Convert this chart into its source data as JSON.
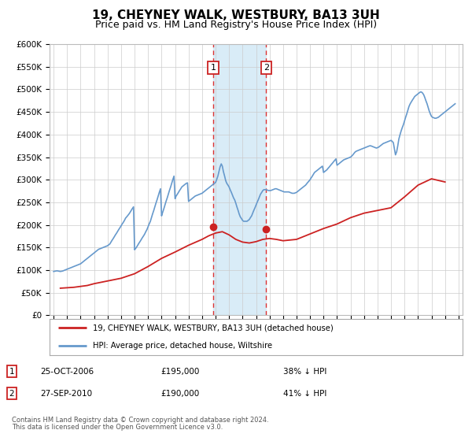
{
  "title": "19, CHEYNEY WALK, WESTBURY, BA13 3UH",
  "subtitle": "Price paid vs. HM Land Registry's House Price Index (HPI)",
  "title_fontsize": 11,
  "subtitle_fontsize": 9,
  "ylim": [
    0,
    600000
  ],
  "yticks": [
    0,
    50000,
    100000,
    150000,
    200000,
    250000,
    300000,
    350000,
    400000,
    450000,
    500000,
    550000,
    600000
  ],
  "ytick_labels": [
    "£0",
    "£50K",
    "£100K",
    "£150K",
    "£200K",
    "£250K",
    "£300K",
    "£350K",
    "£400K",
    "£450K",
    "£500K",
    "£550K",
    "£600K"
  ],
  "xlim_start": 1994.7,
  "xlim_end": 2025.3,
  "hpi_color": "#6699cc",
  "price_color": "#cc2222",
  "shade_color": "#d0e8f5",
  "sale1_x": 2006.82,
  "sale1_price": 195000,
  "sale1_pct": "38%",
  "sale1_date": "25-OCT-2006",
  "sale2_x": 2010.75,
  "sale2_price": 190000,
  "sale2_pct": "41%",
  "sale2_date": "27-SEP-2010",
  "legend_label_red": "19, CHEYNEY WALK, WESTBURY, BA13 3UH (detached house)",
  "legend_label_blue": "HPI: Average price, detached house, Wiltshire",
  "footer1": "Contains HM Land Registry data © Crown copyright and database right 2024.",
  "footer2": "This data is licensed under the Open Government Licence v3.0.",
  "hpi_x": [
    1995.0,
    1995.08,
    1995.17,
    1995.25,
    1995.33,
    1995.42,
    1995.5,
    1995.58,
    1995.67,
    1995.75,
    1995.83,
    1995.92,
    1996.0,
    1996.08,
    1996.17,
    1996.25,
    1996.33,
    1996.42,
    1996.5,
    1996.58,
    1996.67,
    1996.75,
    1996.83,
    1996.92,
    1997.0,
    1997.08,
    1997.17,
    1997.25,
    1997.33,
    1997.42,
    1997.5,
    1997.58,
    1997.67,
    1997.75,
    1997.83,
    1997.92,
    1998.0,
    1998.08,
    1998.17,
    1998.25,
    1998.33,
    1998.42,
    1998.5,
    1998.58,
    1998.67,
    1998.75,
    1998.83,
    1998.92,
    1999.0,
    1999.08,
    1999.17,
    1999.25,
    1999.33,
    1999.42,
    1999.5,
    1999.58,
    1999.67,
    1999.75,
    1999.83,
    1999.92,
    2000.0,
    2000.08,
    2000.17,
    2000.25,
    2000.33,
    2000.42,
    2000.5,
    2000.58,
    2000.67,
    2000.75,
    2000.83,
    2000.92,
    2001.0,
    2001.08,
    2001.17,
    2001.25,
    2001.33,
    2001.42,
    2001.5,
    2001.58,
    2001.67,
    2001.75,
    2001.83,
    2001.92,
    2002.0,
    2002.08,
    2002.17,
    2002.25,
    2002.33,
    2002.42,
    2002.5,
    2002.58,
    2002.67,
    2002.75,
    2002.83,
    2002.92,
    2003.0,
    2003.08,
    2003.17,
    2003.25,
    2003.33,
    2003.42,
    2003.5,
    2003.58,
    2003.67,
    2003.75,
    2003.83,
    2003.92,
    2004.0,
    2004.08,
    2004.17,
    2004.25,
    2004.33,
    2004.42,
    2004.5,
    2004.58,
    2004.67,
    2004.75,
    2004.83,
    2004.92,
    2005.0,
    2005.08,
    2005.17,
    2005.25,
    2005.33,
    2005.42,
    2005.5,
    2005.58,
    2005.67,
    2005.75,
    2005.83,
    2005.92,
    2006.0,
    2006.08,
    2006.17,
    2006.25,
    2006.33,
    2006.42,
    2006.5,
    2006.58,
    2006.67,
    2006.75,
    2006.83,
    2006.92,
    2007.0,
    2007.08,
    2007.17,
    2007.25,
    2007.33,
    2007.42,
    2007.5,
    2007.58,
    2007.67,
    2007.75,
    2007.83,
    2007.92,
    2008.0,
    2008.08,
    2008.17,
    2008.25,
    2008.33,
    2008.42,
    2008.5,
    2008.58,
    2008.67,
    2008.75,
    2008.83,
    2008.92,
    2009.0,
    2009.08,
    2009.17,
    2009.25,
    2009.33,
    2009.42,
    2009.5,
    2009.58,
    2009.67,
    2009.75,
    2009.83,
    2009.92,
    2010.0,
    2010.08,
    2010.17,
    2010.25,
    2010.33,
    2010.42,
    2010.5,
    2010.58,
    2010.67,
    2010.75,
    2010.83,
    2010.92,
    2011.0,
    2011.08,
    2011.17,
    2011.25,
    2011.33,
    2011.42,
    2011.5,
    2011.58,
    2011.67,
    2011.75,
    2011.83,
    2011.92,
    2012.0,
    2012.08,
    2012.17,
    2012.25,
    2012.33,
    2012.42,
    2012.5,
    2012.58,
    2012.67,
    2012.75,
    2012.83,
    2012.92,
    2013.0,
    2013.08,
    2013.17,
    2013.25,
    2013.33,
    2013.42,
    2013.5,
    2013.58,
    2013.67,
    2013.75,
    2013.83,
    2013.92,
    2014.0,
    2014.08,
    2014.17,
    2014.25,
    2014.33,
    2014.42,
    2014.5,
    2014.58,
    2014.67,
    2014.75,
    2014.83,
    2014.92,
    2015.0,
    2015.08,
    2015.17,
    2015.25,
    2015.33,
    2015.42,
    2015.5,
    2015.58,
    2015.67,
    2015.75,
    2015.83,
    2015.92,
    2016.0,
    2016.08,
    2016.17,
    2016.25,
    2016.33,
    2016.42,
    2016.5,
    2016.58,
    2016.67,
    2016.75,
    2016.83,
    2016.92,
    2017.0,
    2017.08,
    2017.17,
    2017.25,
    2017.33,
    2017.42,
    2017.5,
    2017.58,
    2017.67,
    2017.75,
    2017.83,
    2017.92,
    2018.0,
    2018.08,
    2018.17,
    2018.25,
    2018.33,
    2018.42,
    2018.5,
    2018.58,
    2018.67,
    2018.75,
    2018.83,
    2018.92,
    2019.0,
    2019.08,
    2019.17,
    2019.25,
    2019.33,
    2019.42,
    2019.5,
    2019.58,
    2019.67,
    2019.75,
    2019.83,
    2019.92,
    2020.0,
    2020.08,
    2020.17,
    2020.25,
    2020.33,
    2020.42,
    2020.5,
    2020.58,
    2020.67,
    2020.75,
    2020.83,
    2020.92,
    2021.0,
    2021.08,
    2021.17,
    2021.25,
    2021.33,
    2021.42,
    2021.5,
    2021.58,
    2021.67,
    2021.75,
    2021.83,
    2021.92,
    2022.0,
    2022.08,
    2022.17,
    2022.25,
    2022.33,
    2022.42,
    2022.5,
    2022.58,
    2022.67,
    2022.75,
    2022.83,
    2022.92,
    2023.0,
    2023.08,
    2023.17,
    2023.25,
    2023.33,
    2023.42,
    2023.5,
    2023.58,
    2023.67,
    2023.75,
    2023.83,
    2023.92,
    2024.0,
    2024.08,
    2024.17,
    2024.25,
    2024.33,
    2024.42,
    2024.5,
    2024.58,
    2024.67,
    2024.75
  ],
  "hpi_y": [
    97000,
    97500,
    98000,
    98500,
    98000,
    97500,
    97000,
    97500,
    98000,
    99000,
    100000,
    101000,
    102000,
    103000,
    104000,
    105000,
    106000,
    107000,
    108000,
    109000,
    110000,
    111000,
    112000,
    113000,
    114000,
    116000,
    118000,
    120000,
    122000,
    124000,
    126000,
    128000,
    130000,
    132000,
    134000,
    136000,
    138000,
    140000,
    142000,
    144000,
    146000,
    147000,
    148000,
    149000,
    150000,
    151000,
    152000,
    153000,
    154000,
    156000,
    158000,
    162000,
    166000,
    170000,
    174000,
    178000,
    182000,
    186000,
    190000,
    194000,
    198000,
    202000,
    206000,
    210000,
    215000,
    218000,
    221000,
    224000,
    228000,
    232000,
    236000,
    240000,
    145000,
    148000,
    152000,
    156000,
    160000,
    164000,
    168000,
    172000,
    176000,
    180000,
    185000,
    190000,
    196000,
    202000,
    208000,
    216000,
    224000,
    232000,
    240000,
    248000,
    256000,
    264000,
    272000,
    280000,
    220000,
    228000,
    236000,
    244000,
    252000,
    260000,
    268000,
    276000,
    284000,
    292000,
    300000,
    308000,
    258000,
    264000,
    268000,
    272000,
    276000,
    280000,
    284000,
    286000,
    288000,
    290000,
    292000,
    293000,
    252000,
    254000,
    256000,
    258000,
    260000,
    262000,
    264000,
    265000,
    266000,
    267000,
    268000,
    269000,
    270000,
    272000,
    274000,
    276000,
    278000,
    280000,
    282000,
    284000,
    286000,
    288000,
    290000,
    292000,
    294000,
    300000,
    308000,
    318000,
    328000,
    335000,
    330000,
    318000,
    308000,
    298000,
    292000,
    288000,
    284000,
    278000,
    272000,
    266000,
    260000,
    255000,
    248000,
    240000,
    232000,
    224000,
    218000,
    214000,
    210000,
    208000,
    208000,
    208000,
    208000,
    210000,
    212000,
    216000,
    220000,
    226000,
    232000,
    238000,
    244000,
    250000,
    256000,
    262000,
    268000,
    272000,
    276000,
    278000,
    278000,
    278000,
    277000,
    276000,
    276000,
    276000,
    277000,
    278000,
    279000,
    280000,
    280000,
    279000,
    278000,
    277000,
    276000,
    275000,
    274000,
    273000,
    273000,
    273000,
    273000,
    273000,
    272000,
    271000,
    270000,
    270000,
    270000,
    271000,
    272000,
    274000,
    276000,
    278000,
    280000,
    282000,
    284000,
    286000,
    288000,
    291000,
    294000,
    297000,
    300000,
    304000,
    308000,
    312000,
    316000,
    318000,
    320000,
    322000,
    324000,
    326000,
    328000,
    330000,
    316000,
    318000,
    320000,
    322000,
    325000,
    328000,
    331000,
    334000,
    337000,
    340000,
    343000,
    346000,
    332000,
    334000,
    336000,
    338000,
    340000,
    342000,
    344000,
    345000,
    346000,
    347000,
    348000,
    349000,
    350000,
    352000,
    355000,
    358000,
    361000,
    363000,
    364000,
    365000,
    366000,
    367000,
    368000,
    369000,
    370000,
    371000,
    372000,
    373000,
    374000,
    375000,
    375000,
    374000,
    373000,
    372000,
    371000,
    370000,
    371000,
    372000,
    374000,
    376000,
    378000,
    380000,
    381000,
    382000,
    383000,
    384000,
    385000,
    386000,
    387000,
    385000,
    382000,
    368000,
    355000,
    362000,
    375000,
    390000,
    400000,
    408000,
    415000,
    422000,
    430000,
    438000,
    446000,
    454000,
    462000,
    468000,
    472000,
    476000,
    480000,
    484000,
    486000,
    488000,
    490000,
    492000,
    494000,
    494000,
    492000,
    488000,
    482000,
    475000,
    468000,
    460000,
    452000,
    445000,
    440000,
    438000,
    437000,
    436000,
    436000,
    437000,
    438000,
    440000,
    442000,
    444000,
    446000,
    448000,
    450000,
    452000,
    454000,
    456000,
    458000,
    460000,
    462000,
    464000,
    466000,
    468000
  ],
  "price_x": [
    1995.5,
    1996.5,
    1997.5,
    1998.0,
    1999.0,
    2000.0,
    2001.0,
    2002.0,
    2003.0,
    2004.0,
    2005.0,
    2006.0,
    2006.5,
    2007.0,
    2007.5,
    2008.0,
    2008.5,
    2009.0,
    2009.5,
    2010.0,
    2010.5,
    2011.0,
    2011.5,
    2012.0,
    2013.0,
    2014.0,
    2015.0,
    2016.0,
    2017.0,
    2018.0,
    2019.0,
    2020.0,
    2021.0,
    2022.0,
    2023.0,
    2024.0
  ],
  "price_y": [
    60000,
    62000,
    66000,
    70000,
    76000,
    82000,
    92000,
    108000,
    126000,
    140000,
    155000,
    168000,
    176000,
    182000,
    185000,
    178000,
    168000,
    162000,
    160000,
    163000,
    168000,
    170000,
    168000,
    165000,
    168000,
    180000,
    192000,
    202000,
    216000,
    226000,
    232000,
    238000,
    262000,
    288000,
    302000,
    295000
  ]
}
